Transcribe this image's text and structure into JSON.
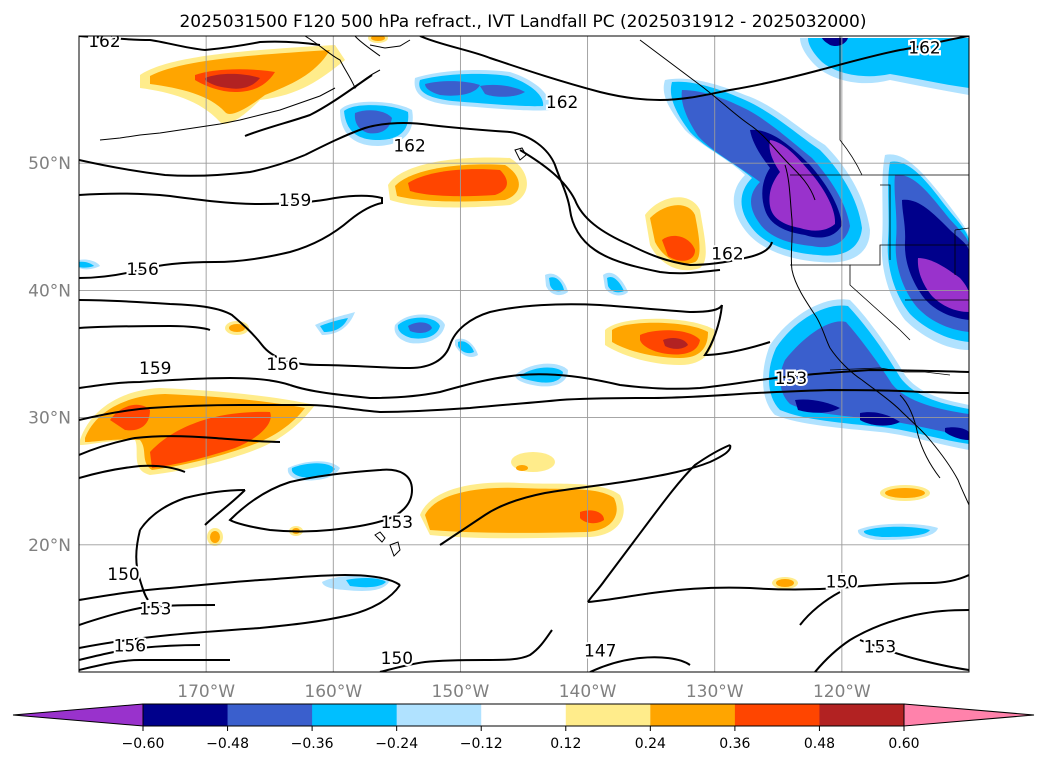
{
  "title": "2025031500 F120 500 hPa refract., IVT Landfall PC (2025031912 - 2025032000)",
  "map": {
    "lon_range": [
      -180,
      -110
    ],
    "lat_range": [
      10,
      60
    ],
    "lon_ticks": [
      -170,
      -160,
      -150,
      -140,
      -130,
      -120
    ],
    "lon_tick_labels": [
      "170°W",
      "160°W",
      "150°W",
      "140°W",
      "130°W",
      "120°W"
    ],
    "lat_ticks": [
      20,
      30,
      40,
      50
    ],
    "lat_tick_labels": [
      "20°N",
      "30°N",
      "40°N",
      "50°N"
    ],
    "gridlines": true
  },
  "contours": {
    "labels": [
      {
        "text": "162",
        "lon": -178,
        "lat": 59.6
      },
      {
        "text": "162",
        "lon": -154,
        "lat": 51.4
      },
      {
        "text": "162",
        "lon": -142,
        "lat": 54.8
      },
      {
        "text": "162",
        "lon": -129,
        "lat": 42.9
      },
      {
        "text": "162",
        "lon": -113.5,
        "lat": 59.1
      },
      {
        "text": "159",
        "lon": -163,
        "lat": 47.1
      },
      {
        "text": "159",
        "lon": -174,
        "lat": 33.9
      },
      {
        "text": "156",
        "lon": -175,
        "lat": 41.7
      },
      {
        "text": "156",
        "lon": -164,
        "lat": 34.2
      },
      {
        "text": "156",
        "lon": -176,
        "lat": 12.1
      },
      {
        "text": "153",
        "lon": -124,
        "lat": 33.1
      },
      {
        "text": "153",
        "lon": -155,
        "lat": 21.8
      },
      {
        "text": "153",
        "lon": -174,
        "lat": 15.0
      },
      {
        "text": "153",
        "lon": -117,
        "lat": 12.0
      },
      {
        "text": "150",
        "lon": -176.5,
        "lat": 17.7
      },
      {
        "text": "150",
        "lon": -120,
        "lat": 17.1
      },
      {
        "text": "150",
        "lon": -155,
        "lat": 11.1
      },
      {
        "text": "147",
        "lon": -139,
        "lat": 11.7
      }
    ]
  },
  "shading": {
    "levels": [
      -0.6,
      -0.48,
      -0.36,
      -0.24,
      -0.12,
      0.12,
      0.24,
      0.36,
      0.48,
      0.6
    ],
    "colors": [
      "#9932CC",
      "#00008B",
      "#3A5FCD",
      "#00BFFF",
      "#B0E2FF",
      "#FFFFFF",
      "#FFEC8B",
      "#FFA500",
      "#FF4500",
      "#B22222",
      "#FF82AB"
    ],
    "tick_labels": [
      "−0.60",
      "−0.48",
      "−0.36",
      "−0.24",
      "−0.12",
      "0.12",
      "0.24",
      "0.36",
      "0.48",
      "0.60"
    ]
  },
  "colorbar": {
    "orientation": "horizontal",
    "extend": "both"
  }
}
